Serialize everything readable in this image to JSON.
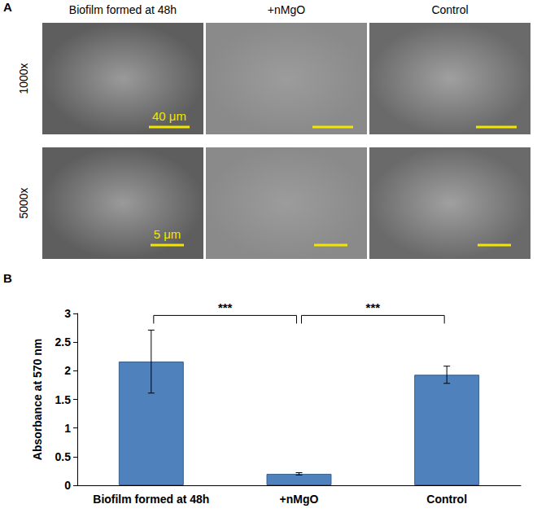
{
  "panel_a": {
    "label": "A",
    "columns": [
      "Biofilm formed at 48h",
      "+nMgO",
      "Control"
    ],
    "rows": [
      "1000x",
      "5000x"
    ],
    "scale_bars": [
      "40 μm",
      "5 μm"
    ]
  },
  "chart_data": {
    "type": "bar",
    "panel_label": "B",
    "categories": [
      "Biofilm formed at 48h",
      "+nMgO",
      "Control"
    ],
    "values": [
      2.16,
      0.2,
      1.93
    ],
    "errors": [
      0.55,
      0.02,
      0.15
    ],
    "color": "#4f81bd",
    "y_label": "Absorbance at 570 nm",
    "ylim": [
      0,
      3
    ],
    "yticks": [
      0,
      0.5,
      1,
      1.5,
      2,
      2.5,
      3
    ],
    "grid": false,
    "significance": [
      {
        "between": [
          "Biofilm formed at 48h",
          "+nMgO"
        ],
        "label": "***"
      },
      {
        "between": [
          "+nMgO",
          "Control"
        ],
        "label": "***"
      }
    ]
  }
}
